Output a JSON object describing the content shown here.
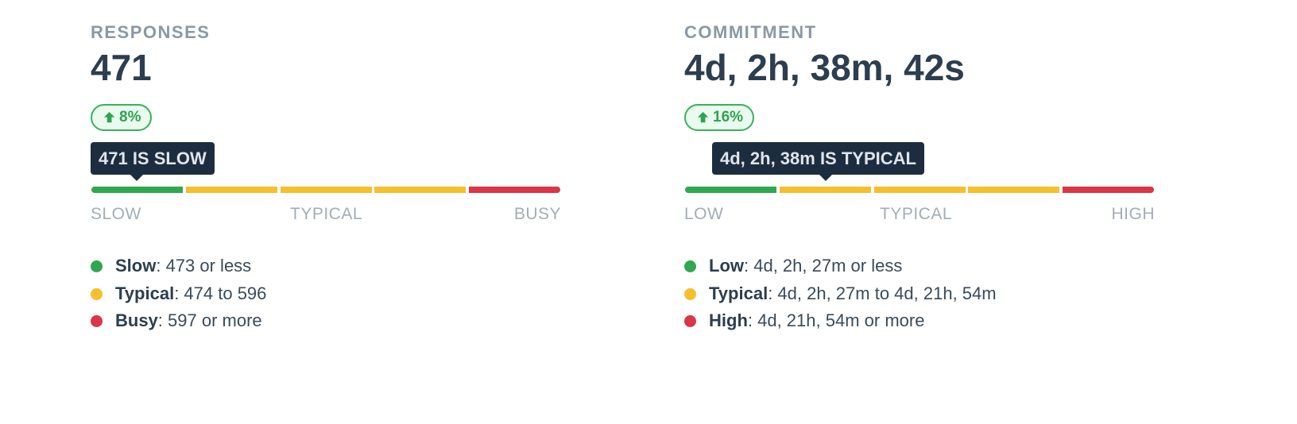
{
  "panels": [
    {
      "label": "RESPONSES",
      "value": "471",
      "change": "8%",
      "marker": "471 IS SLOW",
      "scale": [
        "SLOW",
        "TYPICAL",
        "BUSY"
      ],
      "legend": [
        {
          "name": "Slow",
          "text": ": 473 or less"
        },
        {
          "name": "Typical",
          "text": ": 474 to 596"
        },
        {
          "name": "Busy",
          "text": ": 597 or more"
        }
      ]
    },
    {
      "label": "COMMITMENT",
      "value": "4d, 2h, 38m, 42s",
      "change": "16%",
      "marker": "4d, 2h, 38m IS TYPICAL",
      "scale": [
        "LOW",
        "TYPICAL",
        "HIGH"
      ],
      "legend": [
        {
          "name": "Low",
          "text": ": 4d, 2h, 27m or less"
        },
        {
          "name": "Typical",
          "text": ": 4d, 2h, 27m to 4d, 21h, 54m"
        },
        {
          "name": "High",
          "text": ": 4d, 21h, 54m or more"
        }
      ]
    }
  ]
}
